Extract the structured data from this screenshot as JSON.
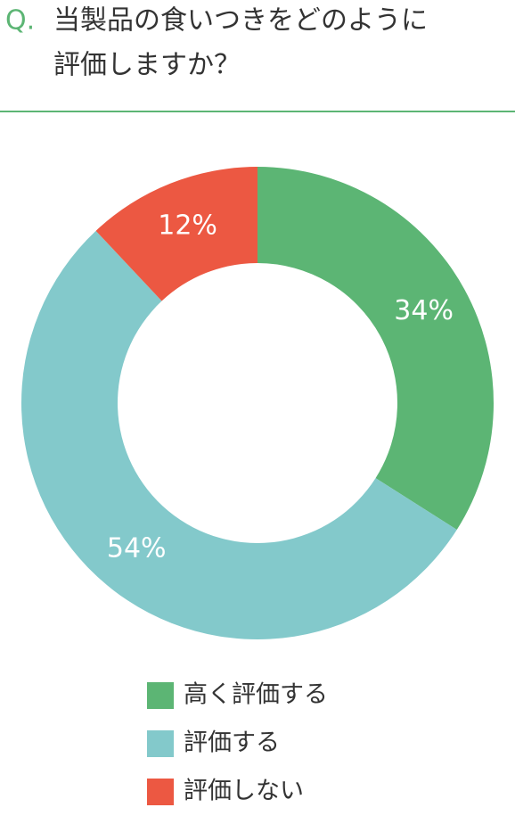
{
  "chart_data": {
    "type": "donut",
    "title_prefix": "Q.",
    "title": [
      "当製品の食いつきをどのように",
      "評価しますか？"
    ],
    "series": [
      {
        "name": "高く評価する",
        "color": "#5cb574",
        "values": [
          34
        ],
        "value_labels": [
          "34%"
        ]
      },
      {
        "name": "評価する",
        "color": "#83c9cb",
        "values": [
          54
        ],
        "value_labels": [
          "54%"
        ]
      },
      {
        "name": "評価しない",
        "color": "#ec5842",
        "values": [
          12
        ],
        "value_labels": [
          "12%"
        ]
      }
    ]
  }
}
